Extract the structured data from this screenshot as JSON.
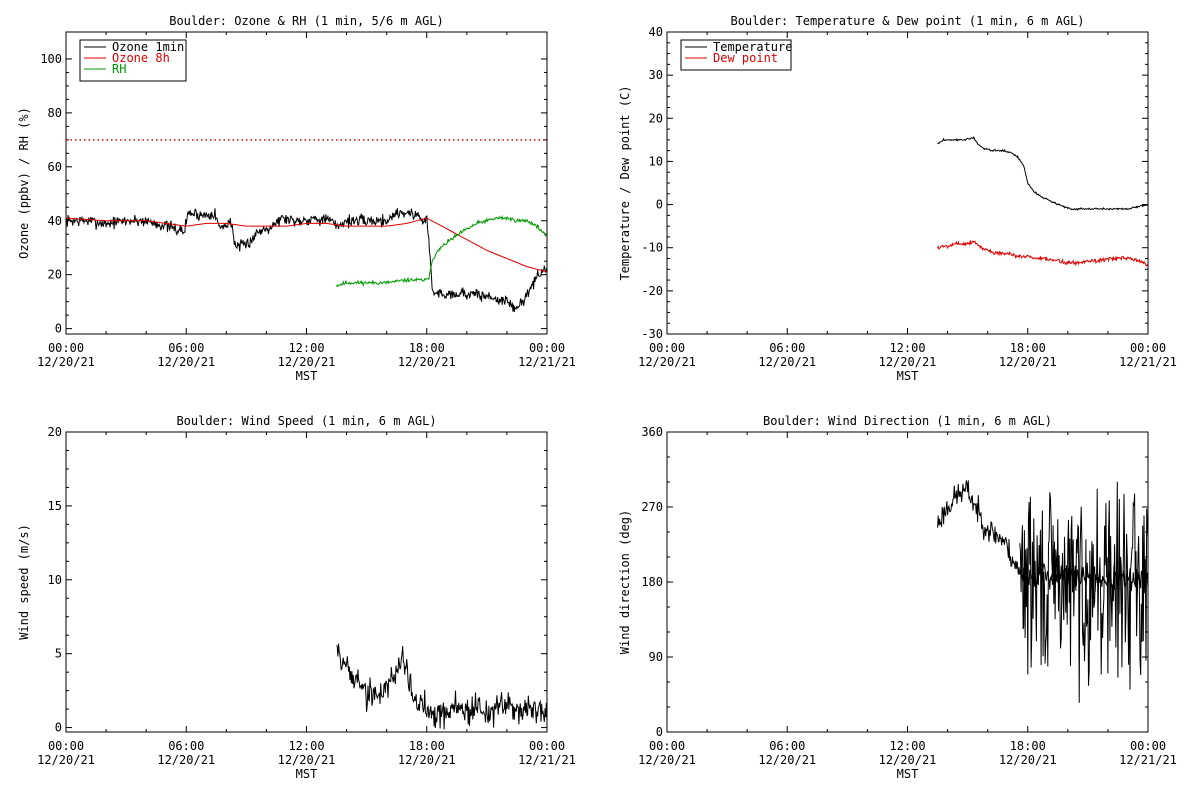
{
  "colors": {
    "black": "#000000",
    "red": "#e00000",
    "green": "#009900"
  },
  "xaxis": {
    "label": "MST",
    "ticks": [
      {
        "h": 0,
        "time": "00:00",
        "date": "12/20/21"
      },
      {
        "h": 6,
        "time": "06:00",
        "date": "12/20/21"
      },
      {
        "h": 12,
        "time": "12:00",
        "date": "12/20/21"
      },
      {
        "h": 18,
        "time": "18:00",
        "date": "12/20/21"
      },
      {
        "h": 24,
        "time": "00:00",
        "date": "12/21/21"
      }
    ]
  },
  "chart_data": [
    {
      "id": "ozone",
      "type": "line",
      "title": "Boulder: Ozone & RH (1 min, 5/6 m AGL)",
      "xlabel": "MST",
      "ylabel": "Ozone (ppbv) / RH (%)",
      "xlim": [
        0,
        24
      ],
      "ylim": [
        -2,
        110
      ],
      "yticks": [
        0,
        20,
        40,
        60,
        80,
        100
      ],
      "legend": {
        "position": "top-left",
        "entries": [
          {
            "label": "Ozone 1min",
            "color": "#000000"
          },
          {
            "label": "Ozone 8h",
            "color": "#e00000"
          },
          {
            "label": "RH",
            "color": "#009900"
          }
        ]
      },
      "reference_lines": [
        {
          "y": 70,
          "color": "#e00000",
          "style": "dotted"
        }
      ],
      "series": [
        {
          "name": "Ozone 1min",
          "color": "#000000",
          "noise": 2.2,
          "seed": 7,
          "x": [
            0,
            1,
            2,
            3,
            4,
            5,
            5.9,
            6.1,
            6.8,
            7.4,
            7.7,
            8.2,
            8.5,
            9,
            9.6,
            10.2,
            10.8,
            11.5,
            12.5,
            13.2,
            13.5,
            14,
            15,
            16,
            16.5,
            17,
            17.5,
            18,
            18.1,
            18.3,
            19,
            20,
            21,
            22,
            22.5,
            23,
            23.5,
            24
          ],
          "y": [
            40,
            40,
            39,
            40,
            40,
            38,
            36,
            43,
            42,
            43,
            37,
            40,
            30,
            31,
            36,
            38,
            41,
            40,
            41,
            40,
            38,
            40,
            40,
            40,
            43,
            43,
            42,
            40,
            33,
            13,
            13,
            13,
            12,
            10,
            7,
            13,
            19,
            23
          ]
        },
        {
          "name": "Ozone 8h",
          "color": "#e00000",
          "noise": 0,
          "x": [
            0,
            2,
            4,
            5,
            6,
            7,
            8,
            9,
            10,
            11,
            12,
            13,
            14,
            15,
            16,
            17,
            18,
            19,
            20,
            21,
            22,
            23,
            24
          ],
          "y": [
            41,
            40,
            40,
            39,
            38,
            39,
            39,
            38,
            38,
            38,
            39,
            39,
            38,
            38,
            38,
            39,
            41,
            37,
            33,
            29,
            26,
            23,
            21
          ]
        },
        {
          "name": "RH",
          "color": "#009900",
          "noise": 0.7,
          "seed": 11,
          "x": [
            13.5,
            14,
            15,
            16,
            17,
            17.5,
            18,
            18.1,
            18.3,
            18.7,
            19.2,
            19.8,
            20.5,
            21,
            21.5,
            22,
            22.5,
            23,
            23.5,
            24
          ],
          "y": [
            16,
            17,
            17,
            17,
            18,
            18,
            18,
            19,
            26,
            30,
            33,
            36,
            39,
            40,
            41,
            41,
            40,
            40,
            38,
            34
          ]
        }
      ]
    },
    {
      "id": "temp",
      "type": "line",
      "title": "Boulder: Temperature & Dew point (1 min, 6 m AGL)",
      "xlabel": "MST",
      "ylabel": "Temperature  / Dew point (C)",
      "xlim": [
        0,
        24
      ],
      "ylim": [
        -30,
        40
      ],
      "yticks": [
        -30,
        -20,
        -10,
        0,
        10,
        20,
        30,
        40
      ],
      "legend": {
        "position": "top-left",
        "entries": [
          {
            "label": "Temperature",
            "color": "#000000"
          },
          {
            "label": "Dew point",
            "color": "#e00000"
          }
        ]
      },
      "series": [
        {
          "name": "Temperature",
          "color": "#000000",
          "noise": 0.2,
          "seed": 3,
          "x": [
            13.5,
            13.8,
            14.2,
            14.8,
            15.3,
            15.5,
            15.8,
            16.3,
            16.8,
            17.2,
            17.5,
            17.8,
            18,
            18.3,
            18.8,
            19.3,
            19.8,
            20.2,
            20.8,
            21.5,
            22,
            22.5,
            23,
            23.5,
            24
          ],
          "y": [
            14,
            15,
            15,
            15,
            15.5,
            14,
            13,
            12.5,
            12.5,
            12,
            11,
            9,
            5,
            3,
            1.5,
            0.5,
            -0.5,
            -1,
            -1,
            -1,
            -1,
            -1,
            -1,
            -0.5,
            0
          ]
        },
        {
          "name": "Dew point",
          "color": "#e00000",
          "noise": 0.5,
          "seed": 5,
          "x": [
            13.5,
            14,
            14.5,
            15,
            15.3,
            15.7,
            16.2,
            17,
            17.5,
            18,
            18.5,
            19.5,
            20,
            20.5,
            21,
            21.5,
            22,
            22.5,
            23,
            23.5,
            24
          ],
          "y": [
            -10,
            -9.5,
            -9,
            -9,
            -8.5,
            -10,
            -11,
            -11.5,
            -12,
            -12,
            -12.5,
            -13,
            -13.5,
            -13.5,
            -13,
            -13,
            -12.5,
            -12.5,
            -12.5,
            -13,
            -14
          ]
        }
      ]
    },
    {
      "id": "wspd",
      "type": "line",
      "title": "Boulder: Wind Speed (1 min, 6 m AGL)",
      "xlabel": "MST",
      "ylabel": "Wind speed (m/s)",
      "xlim": [
        0,
        24
      ],
      "ylim": [
        -0.3,
        20
      ],
      "yticks": [
        0,
        5,
        10,
        15,
        20
      ],
      "series": [
        {
          "name": "Wind speed",
          "color": "#000000",
          "noise": 1.0,
          "seed": 19,
          "x": [
            13.5,
            13.8,
            14,
            14.3,
            14.6,
            15,
            15.3,
            15.7,
            16,
            16.4,
            16.8,
            17,
            17.3,
            17.6,
            18,
            18.5,
            19,
            19.5,
            20,
            20.5,
            21,
            21.5,
            22,
            22.5,
            23,
            23.5,
            24
          ],
          "y": [
            6,
            4,
            4.5,
            3,
            3.5,
            2,
            2.5,
            2,
            3,
            3.5,
            5,
            4,
            2,
            1.5,
            1.5,
            1,
            1,
            1.5,
            1,
            1.5,
            1,
            1.2,
            1.5,
            1.2,
            1.5,
            1,
            1
          ]
        }
      ]
    },
    {
      "id": "wdir",
      "type": "line",
      "title": "Boulder: Wind Direction (1 min, 6 m AGL)",
      "xlabel": "MST",
      "ylabel": "Wind direction (deg)",
      "xlim": [
        0,
        24
      ],
      "ylim": [
        0,
        360
      ],
      "yticks": [
        0,
        90,
        180,
        270,
        360
      ],
      "series": [
        {
          "name": "Wind direction",
          "color": "#000000",
          "noise": 15,
          "seed": 23,
          "x": [
            13.5,
            14,
            14.5,
            15,
            15.3,
            15.8,
            16.2,
            16.8,
            17.2,
            17.6,
            24
          ],
          "y": [
            250,
            270,
            285,
            290,
            275,
            250,
            240,
            230,
            210,
            190,
            180
          ]
        },
        {
          "name": "Wind direction (variable)",
          "color": "#000000",
          "noise": 110,
          "seed": 29,
          "clip": [
            0,
            360
          ],
          "x": [
            17.6,
            18,
            19,
            20,
            21,
            22,
            23,
            24
          ],
          "y": [
            190,
            180,
            175,
            180,
            180,
            175,
            180,
            180
          ]
        }
      ]
    }
  ]
}
